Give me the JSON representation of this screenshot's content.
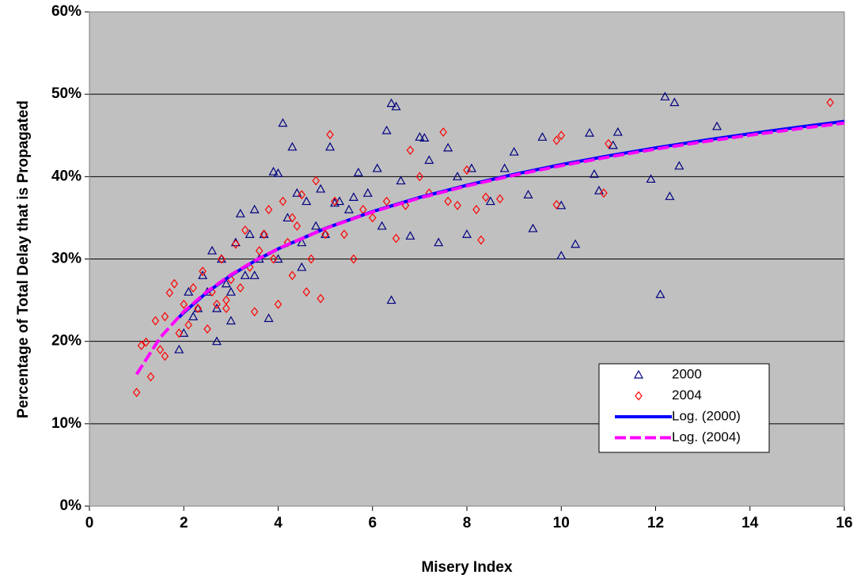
{
  "chart_data": {
    "type": "scatter",
    "xlabel": "Misery Index",
    "ylabel": "Percentage of Total Delay that is Propagated",
    "xlim": [
      0,
      16
    ],
    "xticks": [
      0,
      2,
      4,
      6,
      8,
      10,
      12,
      14,
      16
    ],
    "ylim": [
      0,
      60
    ],
    "yticks": [
      {
        "value": 0,
        "label": "0%"
      },
      {
        "value": 10,
        "label": "10%"
      },
      {
        "value": 20,
        "label": "20%"
      },
      {
        "value": 30,
        "label": "30%"
      },
      {
        "value": 40,
        "label": "40%"
      },
      {
        "value": 50,
        "label": "50%"
      },
      {
        "value": 60,
        "label": "60%"
      }
    ],
    "grid": true,
    "plot_background": "#c0c0c0",
    "series": [
      {
        "name": "2000",
        "color": "#000080",
        "marker": "triangle",
        "x": [
          1.9,
          2.0,
          2.1,
          2.2,
          2.3,
          2.4,
          2.5,
          2.6,
          2.7,
          2.8,
          2.9,
          3.0,
          3.1,
          3.2,
          3.3,
          3.4,
          3.5,
          3.6,
          3.7,
          3.8,
          3.9,
          4.0,
          4.1,
          4.2,
          4.3,
          4.4,
          4.5,
          4.6,
          4.8,
          4.9,
          5.0,
          5.1,
          5.3,
          5.5,
          5.7,
          5.9,
          6.1,
          6.2,
          6.3,
          6.4,
          6.5,
          6.4,
          6.6,
          6.8,
          7.0,
          7.1,
          7.2,
          7.4,
          7.6,
          7.8,
          8.0,
          8.1,
          8.5,
          8.8,
          9.0,
          9.3,
          9.4,
          9.6,
          10.0,
          10.0,
          10.3,
          10.6,
          10.7,
          10.8,
          11.1,
          11.2,
          11.9,
          12.1,
          12.2,
          12.3,
          12.4,
          12.5,
          13.3,
          5.2,
          5.6,
          3.0,
          2.7,
          4.0,
          4.5,
          3.5
        ],
        "values": [
          19,
          21,
          26,
          23,
          24,
          28,
          26,
          31,
          20,
          30,
          27,
          22.5,
          32,
          35.5,
          28,
          33,
          36,
          30,
          33,
          22.8,
          40.6,
          40.4,
          46.5,
          35,
          43.6,
          38,
          32,
          37,
          34,
          38.5,
          33,
          43.6,
          37,
          36,
          40.5,
          38,
          41,
          34,
          45.6,
          48.9,
          48.5,
          25,
          39.5,
          32.8,
          44.8,
          44.7,
          42,
          32,
          43.5,
          40,
          33,
          41,
          37,
          41,
          43,
          37.8,
          33.7,
          44.8,
          36.5,
          30.4,
          31.8,
          45.3,
          40.3,
          38.3,
          43.8,
          45.4,
          39.7,
          25.7,
          49.7,
          37.6,
          49,
          41.3,
          46.1,
          36.8,
          37.5,
          26,
          24,
          30,
          29,
          28
        ]
      },
      {
        "name": "2004",
        "color": "#ff0000",
        "marker": "diamond",
        "x": [
          1.0,
          1.2,
          1.3,
          1.4,
          1.5,
          1.6,
          1.7,
          1.8,
          1.9,
          2.0,
          2.1,
          2.2,
          2.3,
          2.4,
          2.5,
          2.6,
          2.7,
          2.8,
          2.9,
          3.0,
          3.1,
          3.2,
          3.3,
          3.4,
          3.5,
          3.6,
          3.7,
          3.8,
          3.9,
          4.0,
          4.1,
          4.2,
          4.3,
          4.4,
          4.5,
          4.6,
          4.7,
          4.8,
          4.9,
          5.0,
          5.1,
          5.2,
          5.4,
          5.6,
          5.8,
          6.0,
          6.3,
          6.5,
          6.7,
          6.8,
          7.0,
          7.2,
          7.5,
          7.6,
          7.8,
          8.0,
          8.2,
          8.3,
          8.4,
          8.7,
          9.9,
          9.9,
          10.0,
          10.9,
          11.0,
          15.7,
          1.1,
          1.6,
          2.9,
          4.3
        ],
        "values": [
          13.8,
          19.9,
          15.7,
          22.5,
          19,
          23,
          25.9,
          27,
          21,
          24.5,
          22,
          26.5,
          24,
          28.5,
          21.5,
          26,
          24.5,
          30,
          25,
          27.5,
          31.8,
          26.5,
          33.5,
          29,
          23.6,
          31,
          33,
          36,
          30,
          24.5,
          37,
          32,
          28,
          34,
          37.8,
          26,
          30,
          39.5,
          25.2,
          33,
          45.1,
          37,
          33,
          30,
          36,
          35,
          37,
          32.5,
          36.5,
          43.2,
          40,
          38,
          45.4,
          37,
          36.5,
          40.8,
          36,
          32.3,
          37.5,
          37.3,
          36.6,
          44.4,
          45,
          38,
          44,
          49,
          19.5,
          18.2,
          24,
          35
        ]
      },
      {
        "name": "Log. (2000)",
        "color": "#0000ff",
        "line_style": "solid",
        "x": [
          1.9,
          2,
          2.5,
          3,
          3.5,
          4,
          5,
          6,
          7,
          8,
          9,
          10,
          11,
          12,
          13,
          14,
          15,
          16
        ],
        "values": [
          22.92,
          23.5,
          25.99,
          28.02,
          29.74,
          31.23,
          33.72,
          35.76,
          37.48,
          38.96,
          40.28,
          41.46,
          42.52,
          43.49,
          44.38,
          45.21,
          45.98,
          46.71
        ]
      },
      {
        "name": "Log. (2004)",
        "color": "#ff00ff",
        "line_style": "dashed",
        "x": [
          1,
          1.5,
          2,
          2.5,
          3,
          3.5,
          4,
          5,
          6,
          7,
          8,
          9,
          10,
          11,
          12,
          13,
          14,
          15,
          16
        ],
        "values": [
          16.0,
          20.46,
          23.62,
          26.08,
          28.09,
          29.78,
          31.25,
          33.7,
          35.71,
          37.41,
          38.87,
          40.17,
          41.33,
          42.38,
          43.34,
          44.22,
          45.03,
          45.79,
          46.5
        ]
      }
    ]
  }
}
